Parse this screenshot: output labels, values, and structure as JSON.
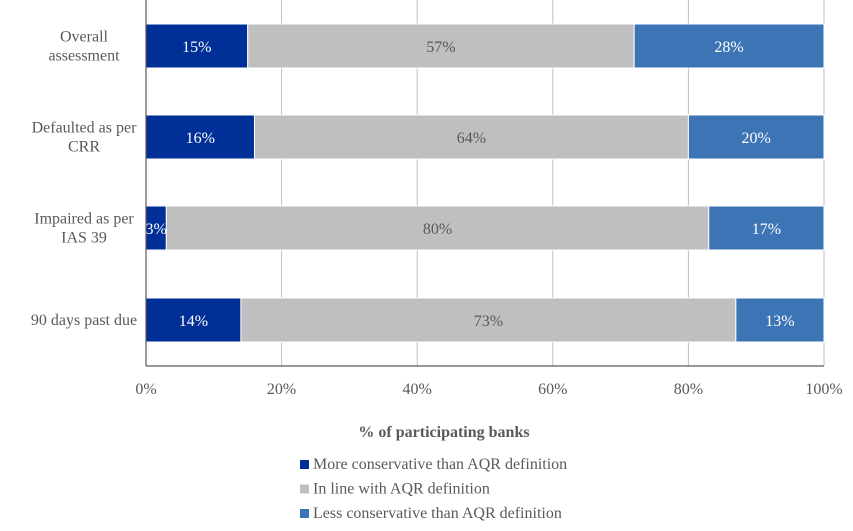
{
  "chart_data": {
    "type": "bar",
    "orientation": "horizontal",
    "stacked": true,
    "title": "",
    "xlabel": "% of participating banks",
    "ylabel": "",
    "xlim": [
      0,
      100
    ],
    "x_ticks": [
      "0%",
      "20%",
      "40%",
      "60%",
      "80%",
      "100%"
    ],
    "grid": true,
    "legend_position": "bottom",
    "categories": [
      "Overall assessment",
      "Defaulted as per CRR",
      "Impaired as per IAS 39",
      "90 days past due"
    ],
    "category_lines": [
      [
        "Overall",
        "assessment"
      ],
      [
        "Defaulted as per",
        "CRR"
      ],
      [
        "Impaired as per",
        "IAS 39"
      ],
      [
        "90 days past due"
      ]
    ],
    "series": [
      {
        "name": "More conservative than AQR definition",
        "color": "#002f97",
        "label_color": "#ffffff",
        "values": [
          15,
          16,
          3,
          14
        ],
        "labels": [
          "15%",
          "16%",
          "3%",
          "14%"
        ]
      },
      {
        "name": "In line with AQR definition",
        "color": "#bfbfbf",
        "label_color": "#595959",
        "values": [
          57,
          64,
          80,
          73
        ],
        "labels": [
          "57%",
          "64%",
          "80%",
          "73%"
        ]
      },
      {
        "name": "Less conservative than AQR definition",
        "color": "#3c74b6",
        "label_color": "#ffffff",
        "values": [
          28,
          20,
          17,
          13
        ],
        "labels": [
          "28%",
          "20%",
          "17%",
          "13%"
        ]
      }
    ]
  }
}
